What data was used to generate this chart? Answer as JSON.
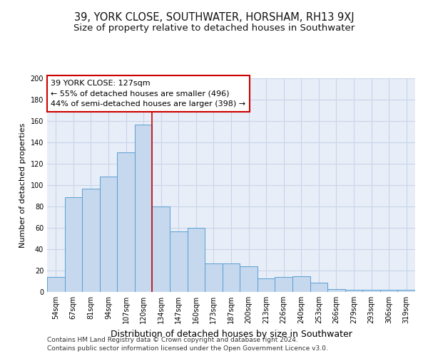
{
  "title1": "39, YORK CLOSE, SOUTHWATER, HORSHAM, RH13 9XJ",
  "title2": "Size of property relative to detached houses in Southwater",
  "xlabel": "Distribution of detached houses by size in Southwater",
  "ylabel": "Number of detached properties",
  "categories": [
    "54sqm",
    "67sqm",
    "81sqm",
    "94sqm",
    "107sqm",
    "120sqm",
    "134sqm",
    "147sqm",
    "160sqm",
    "173sqm",
    "187sqm",
    "200sqm",
    "213sqm",
    "226sqm",
    "240sqm",
    "253sqm",
    "266sqm",
    "279sqm",
    "293sqm",
    "306sqm",
    "319sqm"
  ],
  "values": [
    14,
    89,
    97,
    108,
    131,
    157,
    80,
    57,
    60,
    27,
    27,
    24,
    13,
    14,
    15,
    9,
    3,
    2,
    2,
    2,
    2
  ],
  "bar_color": "#c5d8ed",
  "bar_edge_color": "#5a9fd4",
  "vline_x": 5.5,
  "vline_color": "#cc0000",
  "annotation_text": "39 YORK CLOSE: 127sqm\n← 55% of detached houses are smaller (496)\n44% of semi-detached houses are larger (398) →",
  "annotation_box_color": "#ffffff",
  "annotation_box_edge_color": "#cc0000",
  "ylim": [
    0,
    200
  ],
  "yticks": [
    0,
    20,
    40,
    60,
    80,
    100,
    120,
    140,
    160,
    180,
    200
  ],
  "grid_color": "#c8d4e8",
  "bg_color": "#e8eef8",
  "footer1": "Contains HM Land Registry data © Crown copyright and database right 2024.",
  "footer2": "Contains public sector information licensed under the Open Government Licence v3.0.",
  "title1_fontsize": 10.5,
  "title2_fontsize": 9.5,
  "xlabel_fontsize": 9,
  "ylabel_fontsize": 8,
  "ann_fontsize": 8,
  "tick_fontsize": 7,
  "footer_fontsize": 6.5
}
